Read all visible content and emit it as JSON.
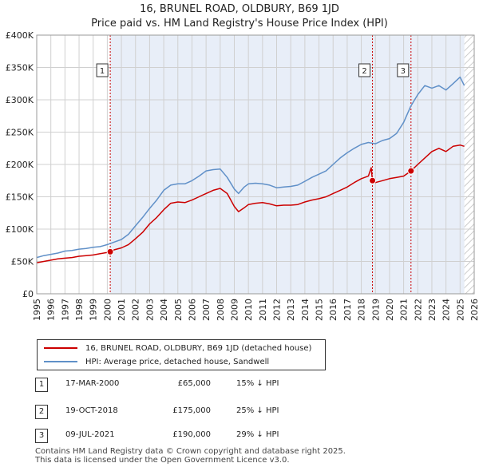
{
  "chart_data": {
    "type": "line",
    "title": "16, BRUNEL ROAD, OLDBURY, B69 1JD",
    "subtitle": "Price paid vs. HM Land Registry's House Price Index (HPI)",
    "xlim": [
      1995,
      2026
    ],
    "ylim": [
      0,
      400000
    ],
    "x_ticks": [
      "1995",
      "1996",
      "1997",
      "1998",
      "1999",
      "2000",
      "2001",
      "2002",
      "2003",
      "2004",
      "2005",
      "2006",
      "2007",
      "2008",
      "2009",
      "2010",
      "2011",
      "2012",
      "2013",
      "2014",
      "2015",
      "2016",
      "2017",
      "2018",
      "2019",
      "2020",
      "2021",
      "2022",
      "2023",
      "2024",
      "2025",
      "2026"
    ],
    "y_ticks": [
      {
        "value": 0,
        "label": "£0"
      },
      {
        "value": 50000,
        "label": "£50K"
      },
      {
        "value": 100000,
        "label": "£100K"
      },
      {
        "value": 150000,
        "label": "£150K"
      },
      {
        "value": 200000,
        "label": "£200K"
      },
      {
        "value": 250000,
        "label": "£250K"
      },
      {
        "value": 300000,
        "label": "£300K"
      },
      {
        "value": 350000,
        "label": "£350K"
      },
      {
        "value": 400000,
        "label": "£400K"
      }
    ],
    "shaded_range": [
      2000.21,
      2025.3
    ],
    "hatched_range": [
      2025.3,
      2026
    ],
    "series": [
      {
        "name": "16, BRUNEL ROAD, OLDBURY, B69 1JD (detached house)",
        "color": "#cc0000",
        "x": [
          1995.0,
          1995.5,
          1996.0,
          1996.5,
          1997.0,
          1997.5,
          1998.0,
          1998.5,
          1999.0,
          1999.5,
          2000.0,
          2000.21,
          2000.5,
          2001.0,
          2001.5,
          2002.0,
          2002.5,
          2003.0,
          2003.5,
          2004.0,
          2004.5,
          2005.0,
          2005.5,
          2006.0,
          2006.5,
          2007.0,
          2007.5,
          2008.0,
          2008.5,
          2009.0,
          2009.3,
          2009.7,
          2010.0,
          2010.5,
          2011.0,
          2011.5,
          2012.0,
          2012.5,
          2013.0,
          2013.5,
          2014.0,
          2014.5,
          2015.0,
          2015.5,
          2016.0,
          2016.5,
          2017.0,
          2017.5,
          2018.0,
          2018.5,
          2018.7,
          2018.79,
          2019.0,
          2019.5,
          2020.0,
          2020.5,
          2021.0,
          2021.52,
          2022.0,
          2022.5,
          2023.0,
          2023.5,
          2024.0,
          2024.5,
          2025.0,
          2025.3
        ],
        "values": [
          48000,
          50000,
          52000,
          54000,
          55000,
          56000,
          58000,
          59000,
          60000,
          62000,
          64000,
          65000,
          68000,
          71000,
          76000,
          85000,
          95000,
          108000,
          118000,
          130000,
          140000,
          142000,
          141000,
          145000,
          150000,
          155000,
          160000,
          163000,
          155000,
          135000,
          127000,
          133000,
          138000,
          140000,
          141000,
          139000,
          136000,
          137000,
          137000,
          138000,
          142000,
          145000,
          147000,
          150000,
          155000,
          160000,
          165000,
          172000,
          178000,
          182000,
          195000,
          175000,
          172000,
          175000,
          178000,
          180000,
          182000,
          190000,
          200000,
          210000,
          220000,
          225000,
          220000,
          228000,
          230000,
          228000
        ]
      },
      {
        "name": "HPI: Average price, detached house, Sandwell",
        "color": "#6090c8",
        "x": [
          1995.0,
          1995.5,
          1996.0,
          1996.5,
          1997.0,
          1997.5,
          1998.0,
          1998.5,
          1999.0,
          1999.5,
          2000.0,
          2000.5,
          2001.0,
          2001.5,
          2002.0,
          2002.5,
          2003.0,
          2003.5,
          2004.0,
          2004.5,
          2005.0,
          2005.5,
          2006.0,
          2006.5,
          2007.0,
          2007.5,
          2008.0,
          2008.5,
          2009.0,
          2009.3,
          2009.7,
          2010.0,
          2010.5,
          2011.0,
          2011.5,
          2012.0,
          2012.5,
          2013.0,
          2013.5,
          2014.0,
          2014.5,
          2015.0,
          2015.5,
          2016.0,
          2016.5,
          2017.0,
          2017.5,
          2018.0,
          2018.5,
          2019.0,
          2019.5,
          2020.0,
          2020.5,
          2021.0,
          2021.5,
          2022.0,
          2022.5,
          2023.0,
          2023.5,
          2024.0,
          2024.5,
          2025.0,
          2025.3
        ],
        "values": [
          56000,
          59000,
          61000,
          63000,
          66000,
          67000,
          69000,
          70000,
          72000,
          73000,
          76000,
          80000,
          84000,
          92000,
          105000,
          118000,
          132000,
          145000,
          160000,
          168000,
          170000,
          170000,
          175000,
          182000,
          190000,
          192000,
          193000,
          180000,
          162000,
          155000,
          165000,
          170000,
          171000,
          170000,
          168000,
          164000,
          165000,
          166000,
          168000,
          174000,
          180000,
          185000,
          190000,
          200000,
          210000,
          218000,
          225000,
          231000,
          234000,
          232000,
          237000,
          240000,
          248000,
          265000,
          290000,
          308000,
          322000,
          318000,
          322000,
          315000,
          325000,
          335000,
          322000
        ]
      }
    ],
    "sales": [
      {
        "n": "1",
        "x": 2000.21,
        "value": 65000,
        "date": "17-MAR-2000",
        "price": "£65,000",
        "rel": "15% ↓ HPI"
      },
      {
        "n": "2",
        "x": 2018.79,
        "value": 175000,
        "date": "19-OCT-2018",
        "price": "£175,000",
        "rel": "25% ↓ HPI"
      },
      {
        "n": "3",
        "x": 2021.52,
        "value": 190000,
        "date": "09-JUL-2021",
        "price": "£190,000",
        "rel": "29% ↓ HPI"
      }
    ]
  },
  "legend": {
    "property_label": "16, BRUNEL ROAD, OLDBURY, B69 1JD (detached house)",
    "hpi_label": "HPI: Average price, detached house, Sandwell"
  },
  "footer": {
    "line1": "Contains HM Land Registry data © Crown copyright and database right 2025.",
    "line2": "This data is licensed under the Open Government Licence v3.0."
  }
}
